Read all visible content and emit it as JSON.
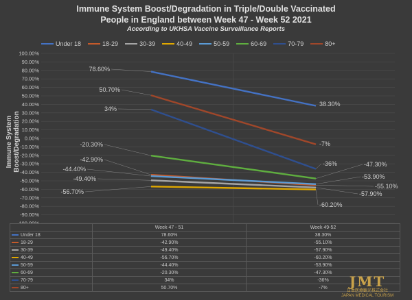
{
  "chart_data": {
    "type": "line",
    "title_line1": "Immune System Boost/Degradation in Triple/Double Vaccinated",
    "title_line2": "People in England between Week 47 - Week 52 2021",
    "subtitle": "According to UKHSA Vaccine Surveillance Reports",
    "ylabel": "Immune System Boost/Degradation",
    "ylim": [
      -100,
      100
    ],
    "ytick_step": 10,
    "yticks": [
      "100.00%",
      "90.00%",
      "80.00%",
      "70.00%",
      "60.00%",
      "50.00%",
      "40.00%",
      "30.00%",
      "20.00%",
      "10.00%",
      "0.00%",
      "-10.00%",
      "-20.00%",
      "-30.00%",
      "-40.00%",
      "-50.00%",
      "-60.00%",
      "-70.00%",
      "-80.00%",
      "-90.00%",
      "-100.00%"
    ],
    "categories": [
      "Week 47 - 51",
      "Week 49-52"
    ],
    "grid": true,
    "legend_placement": "top",
    "series": [
      {
        "name": "Under 18",
        "color": "#4472c4",
        "values": [
          78.6,
          38.3
        ],
        "labels": [
          "78.60%",
          "38.30%"
        ]
      },
      {
        "name": "18-29",
        "color": "#c55a2a",
        "values": [
          -42.9,
          -55.1
        ],
        "labels": [
          "-42.90%",
          "-55.10%"
        ]
      },
      {
        "name": "30-39",
        "color": "#a5a5a5",
        "values": [
          -49.4,
          -57.9
        ],
        "labels": [
          "-49.40%",
          "-57.90%"
        ]
      },
      {
        "name": "40-49",
        "color": "#e0a800",
        "values": [
          -56.7,
          -60.2
        ],
        "labels": [
          "-56.70%",
          "-60.20%"
        ]
      },
      {
        "name": "50-59",
        "color": "#5b9bd5",
        "values": [
          -44.4,
          -53.9
        ],
        "labels": [
          "-44.40%",
          "-53.90%"
        ]
      },
      {
        "name": "60-69",
        "color": "#5fae3f",
        "values": [
          -20.3,
          -47.3
        ],
        "labels": [
          "-20.30%",
          "-47.30%"
        ]
      },
      {
        "name": "70-79",
        "color": "#2f4f8f",
        "values": [
          34,
          -36
        ],
        "labels": [
          "34%",
          "-36%"
        ]
      },
      {
        "name": "80+",
        "color": "#a0472a",
        "values": [
          50.7,
          -7
        ],
        "labels": [
          "50.70%",
          "-7%"
        ]
      }
    ]
  },
  "logo": {
    "mark": "JMT",
    "line1": "日本医療観光株式会社",
    "line2": "JAPAN MEDICAL TOURISM"
  }
}
